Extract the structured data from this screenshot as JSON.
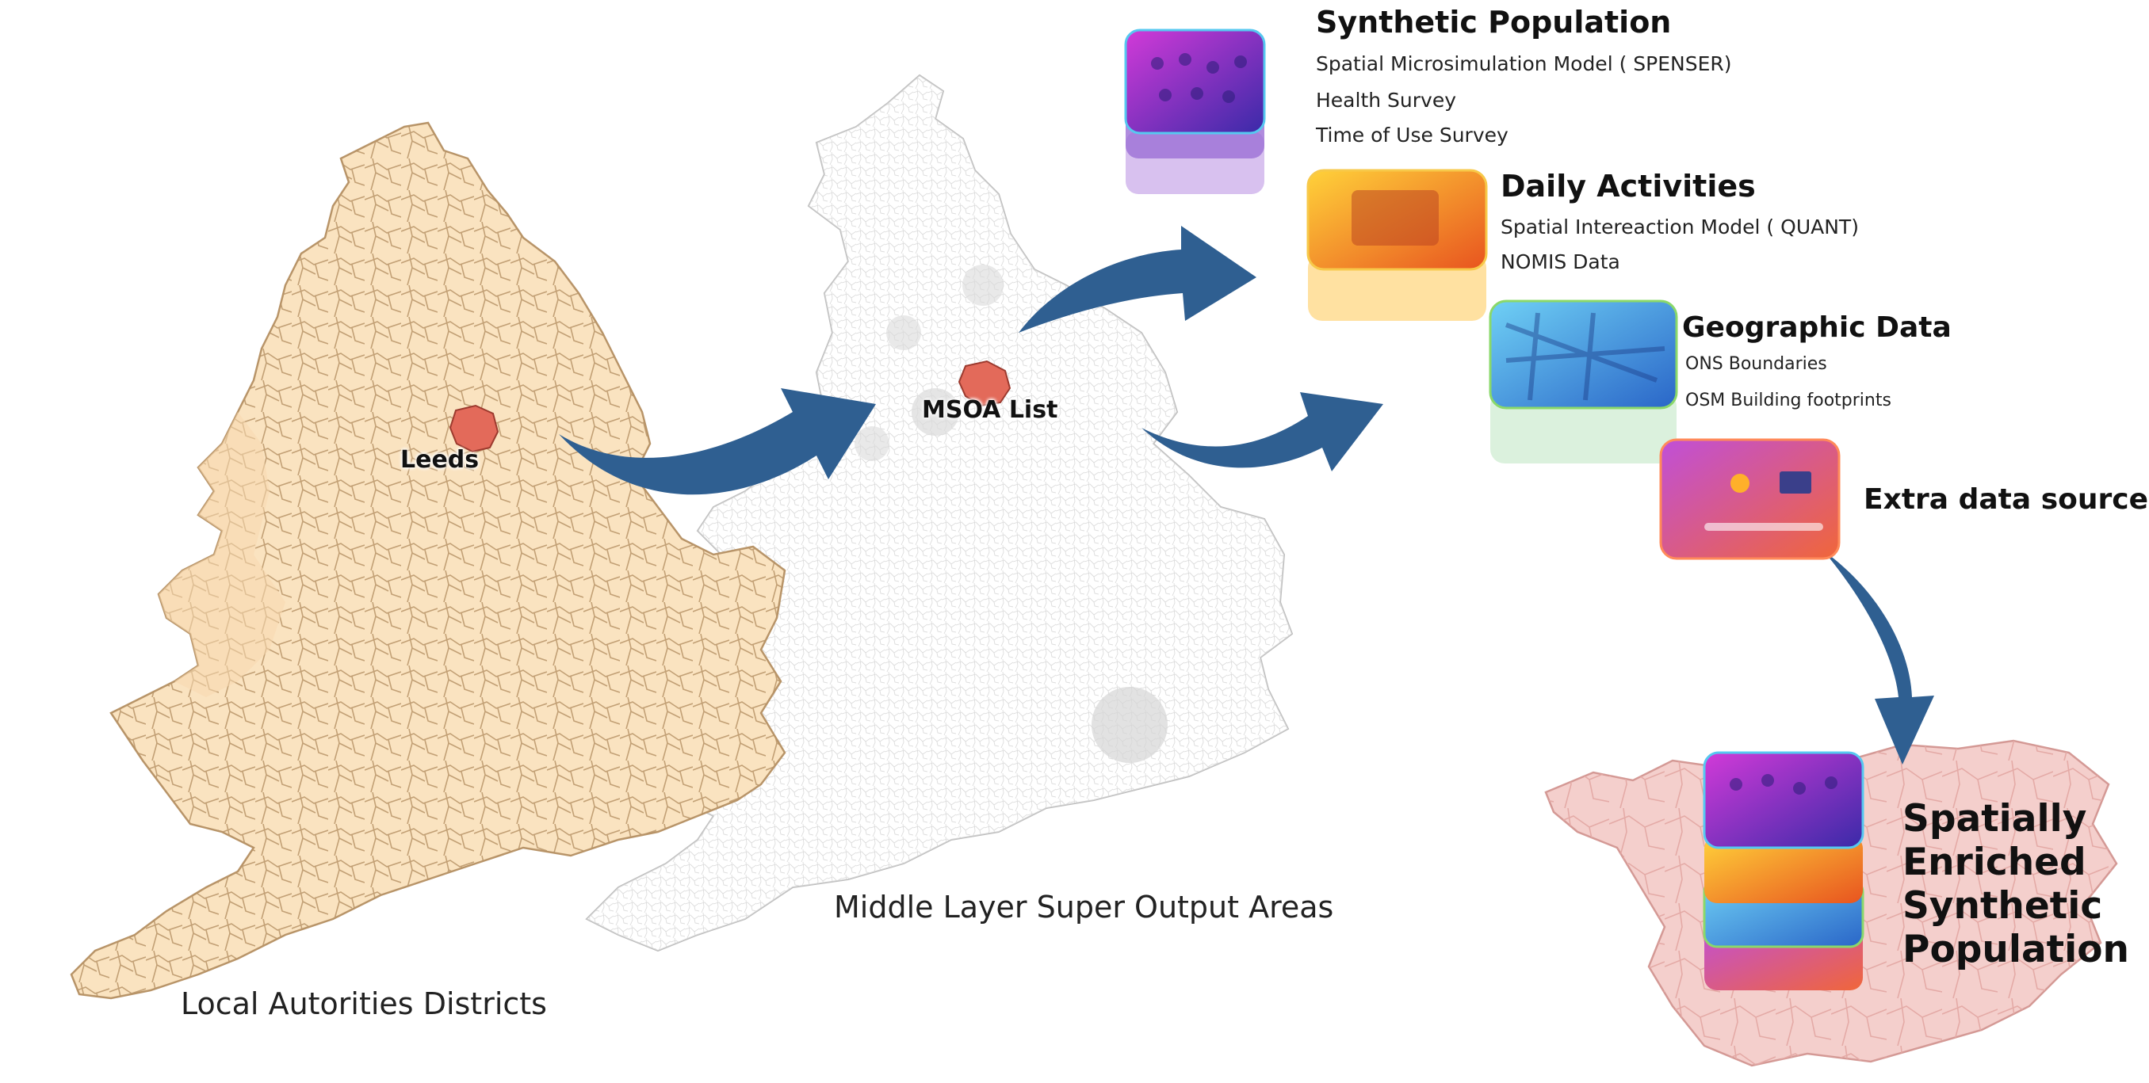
{
  "maps": {
    "lad_caption": "Local Autorities Districts",
    "msoa_caption": "Middle Layer Super Output Areas",
    "leeds_label": "Leeds",
    "msoa_list_label": "MSOA List"
  },
  "layers": [
    {
      "title": "Synthetic Population",
      "items": [
        "Spatial Microsimulation Model ( SPENSER)",
        "Health Survey",
        "Time of Use Survey"
      ]
    },
    {
      "title": "Daily Activities",
      "items": [
        "Spatial Intereaction Model ( QUANT)",
        "NOMIS Data"
      ]
    },
    {
      "title": "Geographic Data",
      "items": [
        "ONS Boundaries",
        "OSM Building footprints"
      ]
    },
    {
      "title": "Extra data sources",
      "items": []
    }
  ],
  "result": {
    "lines": [
      "Spatially",
      "Enriched",
      "Synthetic",
      "Population"
    ]
  },
  "colors": {
    "lad_fill": "#fae3c0",
    "lad_border": "#b89468",
    "msoa_fill": "#fafafa",
    "msoa_border": "#c8c8c8",
    "highlight": "#e36a5a",
    "arrow": "#2f5f91",
    "region_fill": "#f4cfcc",
    "synthetic_layer": "#6a2ca8",
    "activities_layer": "#f2a51f",
    "geographic_layer": "#3aa3dd",
    "extra_layer": "#ef5a55"
  }
}
